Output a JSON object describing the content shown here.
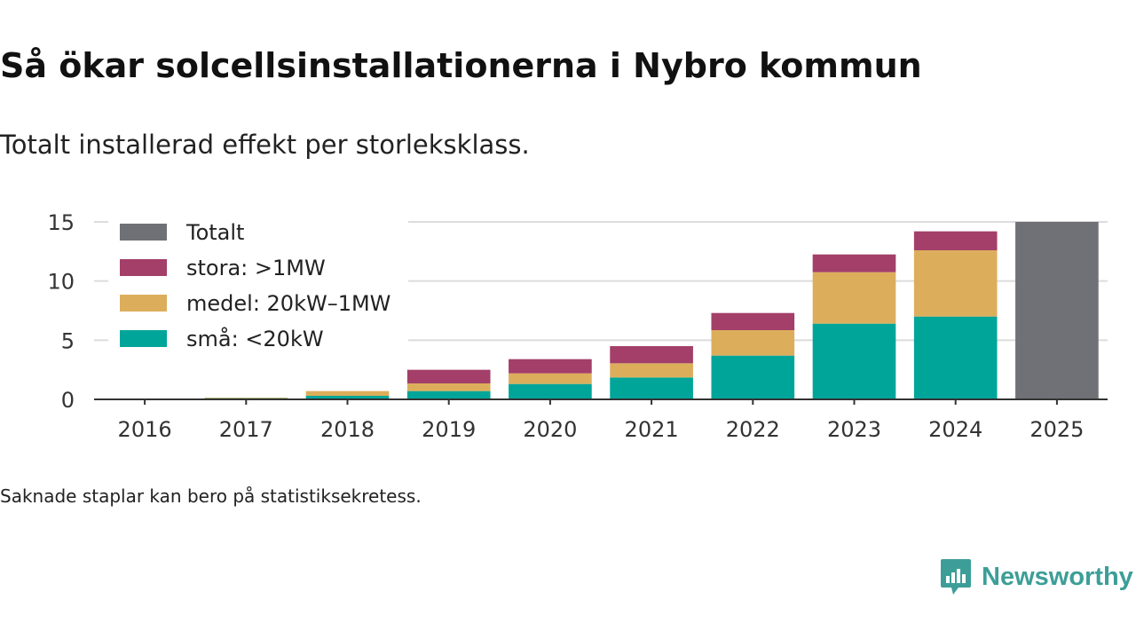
{
  "title": "Så ökar solcellsinstallationerna i Nybro kommun",
  "subtitle": "Totalt installerad effekt per storleksklass.",
  "note": "Saknade staplar kan bero på statistiksekretess.",
  "brand": {
    "name": "Newsworthy",
    "icon": "newsworthy-logo-icon",
    "color": "#3d9e98"
  },
  "chart_data": {
    "type": "bar",
    "stacked": true,
    "title": "",
    "xlabel": "",
    "ylabel": "",
    "ylim": [
      0,
      15
    ],
    "yticks": [
      0,
      5,
      10,
      15
    ],
    "grid": true,
    "legend_position": "top-left",
    "categories": [
      "2016",
      "2017",
      "2018",
      "2019",
      "2020",
      "2021",
      "2022",
      "2023",
      "2024",
      "2025"
    ],
    "series": [
      {
        "name": "små: <20kW",
        "color": "#00a59a",
        "values": [
          0,
          0.1,
          0.3,
          0.7,
          1.3,
          1.85,
          3.7,
          6.4,
          7.0,
          0
        ]
      },
      {
        "name": "medel: 20kW–1MW",
        "color": "#dcae5c",
        "values": [
          0,
          0.05,
          0.4,
          0.65,
          0.9,
          1.2,
          2.15,
          4.35,
          5.6,
          0
        ]
      },
      {
        "name": "stora: >1MW",
        "color": "#a33f69",
        "values": [
          0,
          0,
          0,
          1.15,
          1.2,
          1.45,
          1.45,
          1.5,
          1.6,
          0
        ]
      },
      {
        "name": "Totalt",
        "color": "#707077",
        "values": [
          0,
          0,
          0,
          0,
          0,
          0,
          0,
          0,
          0,
          15
        ]
      }
    ],
    "legend_order": [
      "Totalt",
      "stora: >1MW",
      "medel: 20kW–1MW",
      "små: <20kW"
    ]
  }
}
